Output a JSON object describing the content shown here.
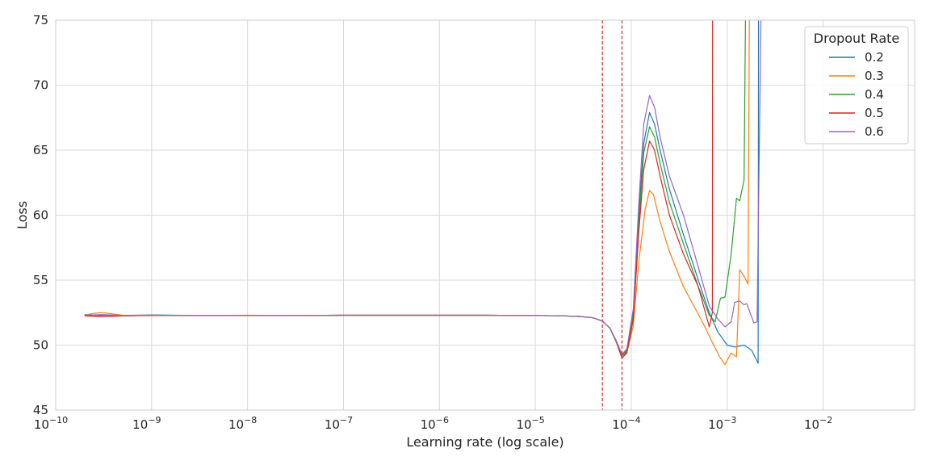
{
  "chart_data": {
    "type": "line",
    "xscale": "log",
    "xlabel": "Learning rate (log scale)",
    "ylabel": "Loss",
    "xlim": [
      1e-10,
      0.09
    ],
    "ylim": [
      45,
      75
    ],
    "grid": true,
    "x_ticks": [
      {
        "value": 1e-10,
        "base": "10",
        "exp": "−10"
      },
      {
        "value": 1e-09,
        "base": "10",
        "exp": "−9"
      },
      {
        "value": 1e-08,
        "base": "10",
        "exp": "−8"
      },
      {
        "value": 1e-07,
        "base": "10",
        "exp": "−7"
      },
      {
        "value": 1e-06,
        "base": "10",
        "exp": "−6"
      },
      {
        "value": 1e-05,
        "base": "10",
        "exp": "−5"
      },
      {
        "value": 0.0001,
        "base": "10",
        "exp": "−4"
      },
      {
        "value": 0.001,
        "base": "10",
        "exp": "−3"
      },
      {
        "value": 0.01,
        "base": "10",
        "exp": "−2"
      }
    ],
    "y_ticks": [
      "45",
      "50",
      "55",
      "60",
      "65",
      "70",
      "75"
    ],
    "vlines": [
      5e-05,
      8e-05
    ],
    "vline_color": "#d62728",
    "legend": {
      "title": "Dropout Rate",
      "placement": "upper right"
    },
    "series": [
      {
        "name": "0.2",
        "color": "#1f77b4",
        "points": [
          [
            2e-10,
            52.35
          ],
          [
            3e-10,
            52.3
          ],
          [
            5e-10,
            52.28
          ],
          [
            1e-09,
            52.32
          ],
          [
            3e-09,
            52.28
          ],
          [
            1e-08,
            52.28
          ],
          [
            3e-08,
            52.28
          ],
          [
            1e-07,
            52.3
          ],
          [
            3e-07,
            52.3
          ],
          [
            1e-06,
            52.3
          ],
          [
            3e-06,
            52.3
          ],
          [
            1e-05,
            52.28
          ],
          [
            2e-05,
            52.25
          ],
          [
            3e-05,
            52.2
          ],
          [
            4e-05,
            52.1
          ],
          [
            5e-05,
            51.85
          ],
          [
            6e-05,
            51.3
          ],
          [
            7e-05,
            50.3
          ],
          [
            8e-05,
            49.2
          ],
          [
            9e-05,
            49.5
          ],
          [
            0.000105,
            52.5
          ],
          [
            0.00012,
            60.2
          ],
          [
            0.000135,
            65.5
          ],
          [
            0.000155,
            67.9
          ],
          [
            0.000175,
            67.0
          ],
          [
            0.0002,
            65.0
          ],
          [
            0.00025,
            62.0
          ],
          [
            0.00035,
            58.5
          ],
          [
            0.0005,
            55.0
          ],
          [
            0.00065,
            52.5
          ],
          [
            0.0008,
            51.0
          ],
          [
            0.001,
            50.0
          ],
          [
            0.0012,
            49.85
          ],
          [
            0.0015,
            50.0
          ],
          [
            0.0018,
            49.6
          ],
          [
            0.0021,
            48.6
          ],
          [
            0.00212,
            75
          ]
        ]
      },
      {
        "name": "0.3",
        "color": "#ff7f0e",
        "points": [
          [
            2e-10,
            52.3
          ],
          [
            2.5e-10,
            52.45
          ],
          [
            3e-10,
            52.5
          ],
          [
            3.5e-10,
            52.45
          ],
          [
            5e-10,
            52.3
          ],
          [
            1e-09,
            52.3
          ],
          [
            3e-09,
            52.28
          ],
          [
            1e-08,
            52.3
          ],
          [
            3e-08,
            52.28
          ],
          [
            1e-07,
            52.3
          ],
          [
            3e-07,
            52.3
          ],
          [
            1e-06,
            52.3
          ],
          [
            3e-06,
            52.3
          ],
          [
            1e-05,
            52.28
          ],
          [
            2e-05,
            52.25
          ],
          [
            3e-05,
            52.2
          ],
          [
            4e-05,
            52.1
          ],
          [
            5e-05,
            51.85
          ],
          [
            6e-05,
            51.3
          ],
          [
            7e-05,
            50.3
          ],
          [
            8e-05,
            49.15
          ],
          [
            9e-05,
            49.4
          ],
          [
            0.000105,
            51.5
          ],
          [
            0.00012,
            56.5
          ],
          [
            0.00014,
            60.5
          ],
          [
            0.000155,
            61.9
          ],
          [
            0.00017,
            61.6
          ],
          [
            0.0002,
            59.5
          ],
          [
            0.00025,
            57.2
          ],
          [
            0.00035,
            54.5
          ],
          [
            0.00045,
            53.0
          ],
          [
            0.00055,
            51.8
          ],
          [
            0.0007,
            50.2
          ],
          [
            0.00085,
            49.0
          ],
          [
            0.00095,
            48.5
          ],
          [
            0.0011,
            49.4
          ],
          [
            0.00125,
            49.1
          ],
          [
            0.00135,
            55.8
          ],
          [
            0.0015,
            55.3
          ],
          [
            0.00165,
            54.7
          ],
          [
            0.0017,
            75
          ]
        ]
      },
      {
        "name": "0.4",
        "color": "#2ca02c",
        "points": [
          [
            2e-10,
            52.3
          ],
          [
            3e-10,
            52.2
          ],
          [
            5e-10,
            52.25
          ],
          [
            1e-09,
            52.3
          ],
          [
            3e-09,
            52.28
          ],
          [
            1e-08,
            52.28
          ],
          [
            3e-08,
            52.28
          ],
          [
            1e-07,
            52.3
          ],
          [
            3e-07,
            52.3
          ],
          [
            1e-06,
            52.3
          ],
          [
            3e-06,
            52.3
          ],
          [
            1e-05,
            52.28
          ],
          [
            2e-05,
            52.25
          ],
          [
            3e-05,
            52.2
          ],
          [
            4e-05,
            52.1
          ],
          [
            5e-05,
            51.85
          ],
          [
            6e-05,
            51.3
          ],
          [
            7e-05,
            50.3
          ],
          [
            8e-05,
            49.2
          ],
          [
            9e-05,
            49.6
          ],
          [
            0.000105,
            52.3
          ],
          [
            0.00012,
            59.5
          ],
          [
            0.000135,
            64.8
          ],
          [
            0.000155,
            66.8
          ],
          [
            0.000175,
            66.0
          ],
          [
            0.0002,
            64.0
          ],
          [
            0.00025,
            61.0
          ],
          [
            0.00035,
            57.8
          ],
          [
            0.0005,
            54.5
          ],
          [
            0.00065,
            52.3
          ],
          [
            0.00075,
            51.8
          ],
          [
            0.00085,
            53.6
          ],
          [
            0.00095,
            53.7
          ],
          [
            0.0011,
            57.0
          ],
          [
            0.00125,
            61.3
          ],
          [
            0.00135,
            61.1
          ],
          [
            0.0015,
            62.7
          ],
          [
            0.00155,
            75
          ]
        ]
      },
      {
        "name": "0.5",
        "color": "#d62728",
        "points": [
          [
            2e-10,
            52.25
          ],
          [
            3e-10,
            52.2
          ],
          [
            5e-10,
            52.25
          ],
          [
            1e-09,
            52.28
          ],
          [
            3e-09,
            52.28
          ],
          [
            1e-08,
            52.28
          ],
          [
            3e-08,
            52.28
          ],
          [
            1e-07,
            52.3
          ],
          [
            3e-07,
            52.3
          ],
          [
            1e-06,
            52.3
          ],
          [
            3e-06,
            52.3
          ],
          [
            1e-05,
            52.28
          ],
          [
            2e-05,
            52.25
          ],
          [
            3e-05,
            52.2
          ],
          [
            4e-05,
            52.1
          ],
          [
            5e-05,
            51.85
          ],
          [
            6e-05,
            51.3
          ],
          [
            7e-05,
            50.2
          ],
          [
            8e-05,
            49.0
          ],
          [
            9e-05,
            49.4
          ],
          [
            0.000105,
            52.0
          ],
          [
            0.00012,
            58.8
          ],
          [
            0.000135,
            63.5
          ],
          [
            0.000155,
            65.7
          ],
          [
            0.000175,
            65.0
          ],
          [
            0.0002,
            63.0
          ],
          [
            0.00025,
            60.0
          ],
          [
            0.00035,
            57.0
          ],
          [
            0.0005,
            54.5
          ],
          [
            0.00065,
            51.4
          ],
          [
            0.0007,
            52.5
          ],
          [
            0.000705,
            75
          ]
        ]
      },
      {
        "name": "0.6",
        "color": "#9467bd",
        "points": [
          [
            2e-10,
            52.3
          ],
          [
            3e-10,
            52.35
          ],
          [
            5e-10,
            52.28
          ],
          [
            1e-09,
            52.3
          ],
          [
            3e-09,
            52.28
          ],
          [
            1e-08,
            52.28
          ],
          [
            3e-08,
            52.28
          ],
          [
            1e-07,
            52.3
          ],
          [
            3e-07,
            52.3
          ],
          [
            1e-06,
            52.3
          ],
          [
            3e-06,
            52.3
          ],
          [
            1e-05,
            52.28
          ],
          [
            2e-05,
            52.25
          ],
          [
            3e-05,
            52.2
          ],
          [
            4e-05,
            52.1
          ],
          [
            5e-05,
            51.85
          ],
          [
            6e-05,
            51.3
          ],
          [
            7e-05,
            50.3
          ],
          [
            8e-05,
            49.3
          ],
          [
            9e-05,
            49.7
          ],
          [
            0.000105,
            52.8
          ],
          [
            0.00012,
            61.0
          ],
          [
            0.000135,
            67.0
          ],
          [
            0.000155,
            69.2
          ],
          [
            0.000175,
            68.3
          ],
          [
            0.0002,
            66.0
          ],
          [
            0.00025,
            63.0
          ],
          [
            0.00035,
            60.0
          ],
          [
            0.0005,
            56.0
          ],
          [
            0.00065,
            53.0
          ],
          [
            0.0008,
            52.0
          ],
          [
            0.00095,
            51.4
          ],
          [
            0.0011,
            51.8
          ],
          [
            0.0012,
            53.3
          ],
          [
            0.00135,
            53.4
          ],
          [
            0.0015,
            53.1
          ],
          [
            0.0016,
            53.2
          ],
          [
            0.00175,
            52.4
          ],
          [
            0.0019,
            51.7
          ],
          [
            0.00205,
            51.8
          ],
          [
            0.00225,
            75
          ]
        ]
      }
    ]
  }
}
